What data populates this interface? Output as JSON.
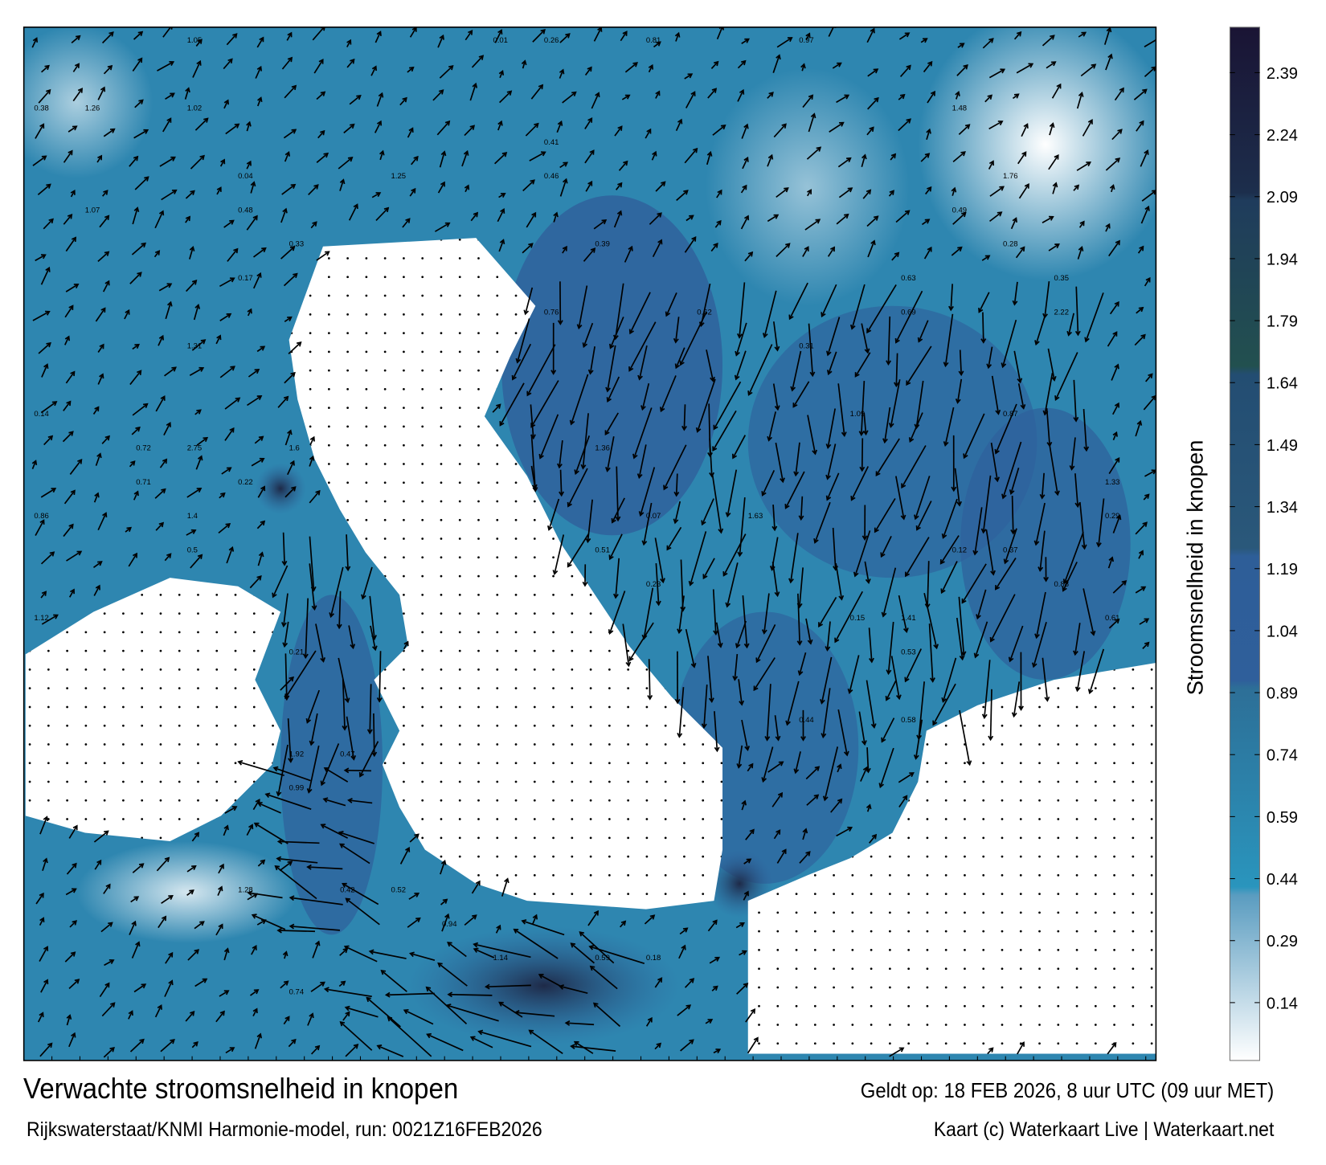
{
  "map": {
    "title": "Verwachte stroomsnelheid in knopen",
    "valid_time": "Geldt op: 18 FEB 2026, 8 uur UTC (09 uur MET)",
    "source": "Rijkswaterstaat/KNMI Harmonie-model, run: 0021Z16FEB2026",
    "credit": "Kaart (c) Waterkaart Live | Waterkaart.net",
    "sea_color": "#2e86b0",
    "land_color": "#ffffff",
    "arrow_color": "#000000",
    "speed_labels": [
      "0.41",
      "0.35",
      "0.23",
      "0.46",
      "0.28",
      "0.22",
      "0.58",
      "0.71",
      "0.42",
      "0.48",
      "0.62",
      "0.39",
      "0.18",
      "0.17",
      "0.15",
      "0.53",
      "0.61",
      "0.69",
      "0.47",
      "0.76",
      "1.02",
      "0.63",
      "0.5",
      "0.74",
      "0.87",
      "1.14",
      "1.07",
      "0.97",
      "1.12",
      "0.86",
      "0.99",
      "0.51",
      "0.49",
      "0.38",
      "0.31",
      "0.94",
      "1.28",
      "1.6",
      "1.25",
      "1.4",
      "1.31",
      "1.92",
      "0.88",
      "1.48",
      "1.76",
      "1.33",
      "1.26",
      "1.63",
      "1.41",
      "2.22",
      "2.75",
      "1.36",
      "1.09",
      "1.05",
      "0.14",
      "0.29",
      "0.12",
      "0.26",
      "0.33",
      "0.44",
      "0.52",
      "0.21",
      "0.07",
      "0.04",
      "0.01",
      "0.59",
      "0.72",
      "0.81",
      "0.37"
    ]
  },
  "colorbar": {
    "label": "Stroomsnelheid in knopen",
    "range": [
      0,
      2.5
    ],
    "ticks": [
      "2.39",
      "2.24",
      "2.09",
      "1.94",
      "1.79",
      "1.64",
      "1.49",
      "1.34",
      "1.19",
      "1.04",
      "0.89",
      "0.74",
      "0.59",
      "0.44",
      "0.29",
      "0.14"
    ],
    "stops": [
      {
        "value": 0.0,
        "color": "#ffffff"
      },
      {
        "value": 0.4,
        "color": "#5a9cc0"
      },
      {
        "value": 0.42,
        "color": "#2a95bd"
      },
      {
        "value": 0.9,
        "color": "#2d6f97"
      },
      {
        "value": 0.92,
        "color": "#2f5f9b"
      },
      {
        "value": 1.22,
        "color": "#2e5e98"
      },
      {
        "value": 1.24,
        "color": "#2a587a"
      },
      {
        "value": 1.66,
        "color": "#234d72"
      },
      {
        "value": 1.68,
        "color": "#22504f"
      },
      {
        "value": 2.08,
        "color": "#1f3c5c"
      },
      {
        "value": 2.1,
        "color": "#1c2e4c"
      },
      {
        "value": 2.5,
        "color": "#1a1434"
      }
    ]
  }
}
